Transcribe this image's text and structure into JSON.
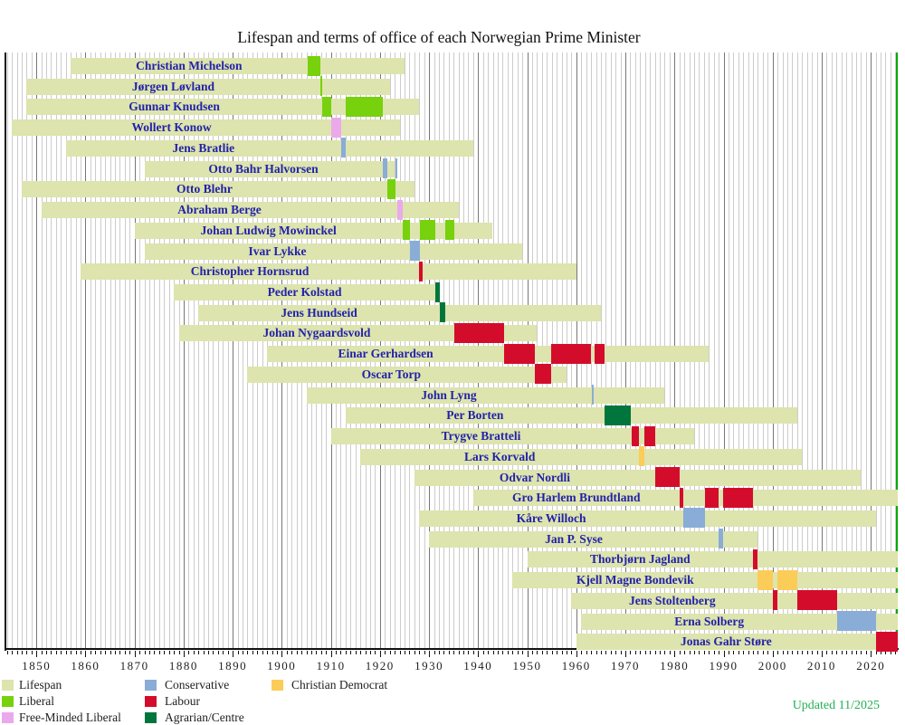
{
  "title": "Lifespan and terms of office of each Norwegian Prime Minister",
  "updated_note": "Updated 11/2025",
  "chart_data": {
    "type": "timeline-gantt",
    "title": "Lifespan and terms of office of each Norwegian Prime Minister",
    "x_axis": {
      "min": 1843.7,
      "max": 2025.5,
      "major_ticks": [
        1850,
        1860,
        1870,
        1880,
        1890,
        1900,
        1910,
        1920,
        1930,
        1940,
        1950,
        1960,
        1970,
        1980,
        1990,
        2000,
        2010,
        2020
      ],
      "minor_tick_interval": 1
    },
    "colors": {
      "lifespan": "#dde4ad",
      "right_edge_line": "#00aa00",
      "name_text": "#2222aa",
      "updated_note": "#22b052"
    },
    "party_colors": {
      "Liberal": "#77d10c",
      "Free-Minded Liberal": "#eba9eb",
      "Conservative": "#89add7",
      "Labour": "#d40c2c",
      "Agrarian/Centre": "#00763c",
      "Christian Democrat": "#fccc58"
    },
    "legend": [
      {
        "label": "Lifespan",
        "color": "#dde4ad"
      },
      {
        "label": "Liberal",
        "color": "#77d10c"
      },
      {
        "label": "Free-Minded Liberal",
        "color": "#eba9eb"
      },
      {
        "label": "Conservative",
        "color": "#89add7"
      },
      {
        "label": "Labour",
        "color": "#d40c2c"
      },
      {
        "label": "Agrarian/Centre",
        "color": "#00763c"
      },
      {
        "label": "Christian Democrat",
        "color": "#fccc58"
      }
    ],
    "prime_ministers": [
      {
        "name": "Christian Michelson",
        "party": "Liberal",
        "life": [
          1857,
          1925
        ],
        "terms": [
          [
            1905.2,
            1907.8
          ]
        ]
      },
      {
        "name": "Jørgen Løvland",
        "party": "Liberal",
        "life": [
          1848,
          1922
        ],
        "terms": [
          [
            1907.8,
            1908.2
          ]
        ]
      },
      {
        "name": "Gunnar Knudsen",
        "party": "Liberal",
        "life": [
          1848,
          1928
        ],
        "terms": [
          [
            1908.2,
            1910.1
          ],
          [
            1913.0,
            1920.5
          ]
        ]
      },
      {
        "name": "Wollert Konow",
        "party": "Free-Minded Liberal",
        "life": [
          1845,
          1924
        ],
        "terms": [
          [
            1910.1,
            1912.1
          ]
        ]
      },
      {
        "name": "Jens Bratlie",
        "party": "Conservative",
        "life": [
          1856,
          1939
        ],
        "terms": [
          [
            1912.1,
            1913.0
          ]
        ]
      },
      {
        "name": "Otto Bahr Halvorsen",
        "party": "Conservative",
        "life": [
          1872,
          1923
        ],
        "terms": [
          [
            1920.5,
            1921.5
          ],
          [
            1923.2,
            1923.6
          ]
        ]
      },
      {
        "name": "Otto Blehr",
        "party": "Liberal",
        "life": [
          1847,
          1927
        ],
        "terms": [
          [
            1921.5,
            1923.2
          ]
        ]
      },
      {
        "name": "Abraham Berge",
        "party": "Free-Minded Liberal",
        "life": [
          1851,
          1936
        ],
        "terms": [
          [
            1923.6,
            1924.6
          ]
        ]
      },
      {
        "name": "Johan Ludwig Mowinckel",
        "party": "Liberal",
        "life": [
          1870,
          1943
        ],
        "terms": [
          [
            1924.6,
            1926.2
          ],
          [
            1928.2,
            1931.3
          ],
          [
            1933.3,
            1935.2
          ]
        ]
      },
      {
        "name": "Ivar Lykke",
        "party": "Conservative",
        "life": [
          1872,
          1949
        ],
        "terms": [
          [
            1926.2,
            1928.2
          ]
        ]
      },
      {
        "name": "Christopher Hornsrud",
        "party": "Labour",
        "life": [
          1859,
          1960
        ],
        "terms": [
          [
            1928.0,
            1928.7
          ]
        ]
      },
      {
        "name": "Peder Kolstad",
        "party": "Agrarian/Centre",
        "life": [
          1878,
          1932
        ],
        "terms": [
          [
            1931.3,
            1932.2
          ]
        ]
      },
      {
        "name": "Jens Hundseid",
        "party": "Agrarian/Centre",
        "life": [
          1883,
          1965
        ],
        "terms": [
          [
            1932.2,
            1933.3
          ]
        ]
      },
      {
        "name": "Johan Nygaardsvold",
        "party": "Labour",
        "life": [
          1879,
          1952
        ],
        "terms": [
          [
            1935.2,
            1945.3
          ]
        ]
      },
      {
        "name": "Einar Gerhardsen",
        "party": "Labour",
        "life": [
          1897,
          1987
        ],
        "terms": [
          [
            1945.3,
            1951.6
          ],
          [
            1954.9,
            1963.0
          ],
          [
            1963.7,
            1965.7
          ]
        ]
      },
      {
        "name": "Oscar Torp",
        "party": "Labour",
        "life": [
          1893,
          1958
        ],
        "terms": [
          [
            1951.6,
            1954.9
          ]
        ]
      },
      {
        "name": "John Lyng",
        "party": "Conservative",
        "life": [
          1905,
          1978
        ],
        "terms": [
          [
            1963.1,
            1963.6
          ]
        ]
      },
      {
        "name": "Per Borten",
        "party": "Agrarian/Centre",
        "life": [
          1913,
          2005
        ],
        "terms": [
          [
            1965.7,
            1971.2
          ]
        ]
      },
      {
        "name": "Trygve Bratteli",
        "party": "Labour",
        "life": [
          1910,
          1984
        ],
        "terms": [
          [
            1971.2,
            1972.8
          ],
          [
            1973.8,
            1976.1
          ]
        ]
      },
      {
        "name": "Lars Korvald",
        "party": "Christian Democrat",
        "life": [
          1916,
          2006
        ],
        "terms": [
          [
            1972.8,
            1973.8
          ]
        ]
      },
      {
        "name": "Odvar Nordli",
        "party": "Labour",
        "life": [
          1927,
          2018
        ],
        "terms": [
          [
            1976.1,
            1981.0
          ]
        ]
      },
      {
        "name": "Gro Harlem Brundtland",
        "party": "Labour",
        "life": [
          1939,
          null
        ],
        "terms": [
          [
            1981.0,
            1981.8
          ],
          [
            1986.2,
            1989.0
          ],
          [
            1989.9,
            1996.0
          ]
        ]
      },
      {
        "name": "Kåre Willoch",
        "party": "Conservative",
        "life": [
          1928,
          2021
        ],
        "terms": [
          [
            1981.8,
            1986.2
          ]
        ]
      },
      {
        "name": "Jan P. Syse",
        "party": "Conservative",
        "life": [
          1930,
          1997
        ],
        "terms": [
          [
            1989.0,
            1989.9
          ]
        ]
      },
      {
        "name": "Thorbjørn Jagland",
        "party": "Labour",
        "life": [
          1950,
          null
        ],
        "terms": [
          [
            1996.0,
            1996.9
          ]
        ]
      },
      {
        "name": "Kjell Magne Bondevik",
        "party": "Christian Democrat",
        "life": [
          1947,
          null
        ],
        "terms": [
          [
            1997.0,
            2000.0
          ],
          [
            2001.0,
            2005.0
          ]
        ]
      },
      {
        "name": "Jens Stoltenberg",
        "party": "Labour",
        "life": [
          1959,
          null
        ],
        "terms": [
          [
            2000.1,
            2001.0
          ],
          [
            2005.1,
            2013.2
          ]
        ]
      },
      {
        "name": "Erna Solberg",
        "party": "Conservative",
        "life": [
          1961,
          null
        ],
        "terms": [
          [
            2013.2,
            2021.0
          ]
        ]
      },
      {
        "name": "Jonas Gahr Støre",
        "party": "Labour",
        "life": [
          1960,
          null
        ],
        "terms": [
          [
            2021.1,
            2025.5
          ]
        ]
      }
    ]
  }
}
